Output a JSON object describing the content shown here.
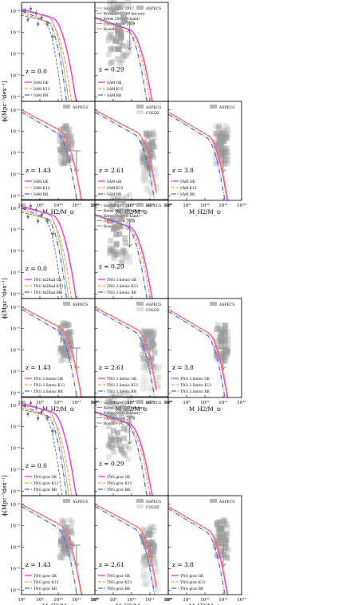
{
  "colors": {
    "GK": "#ff33e0",
    "K13": "#ffa23a",
    "BR": "#3c6fd6",
    "obs": "#777777",
    "aspecs": "#9a9a9a",
    "coldz": "#d2d2d2"
  },
  "labels": {
    "x_axis": "M_H2/M_⊙",
    "y_axis": "ϕ[Mpc⁻³dex⁻¹]",
    "aspecs": "ASPECS",
    "coldz": "COLDZ"
  },
  "observations": [
    "Saintonge+ 2017",
    "Keres 2003 (60 micron)",
    "Keres 2003 (B-band)",
    "Obreschkow 2009",
    "Boselli+14"
  ],
  "chart_data": [
    {
      "type": "line",
      "group": "SAM",
      "series_names": [
        "SAM GK",
        "SAM K13",
        "SAM BR"
      ],
      "panels": [
        {
          "z": "z = 0.0",
          "obs": true,
          "legend": [
            "SAM GK",
            "SAM K13",
            "SAM BR"
          ]
        },
        {
          "z": "z = 0.29",
          "aspecs": true,
          "legend": [
            "SAM GK",
            "SAM K13",
            "SAM BR"
          ]
        },
        {
          "z": "z = 1.43",
          "aspecs": true,
          "legend": [
            "SAM GK",
            "SAM K13",
            "SAM BR"
          ]
        },
        {
          "z": "z = 2.61",
          "aspecs": true,
          "coldz": true,
          "legend": [
            "SAM GK",
            "SAM K13",
            "SAM BR"
          ]
        },
        {
          "z": "z = 3.8",
          "aspecs": true,
          "legend": [
            "SAM GK",
            "SAM K13",
            "SAM BR"
          ]
        }
      ]
    },
    {
      "type": "line",
      "group": "TNG In2Rad / 3.Sersic",
      "series_names": [
        "TNG In2Rad GK",
        "TNG In2Rad K13",
        "TNG In2Rad BR"
      ],
      "panels": [
        {
          "z": "z = 0.0",
          "obs": true,
          "legend": [
            "TNG In2Rad GK",
            "TNG In2Rad K13",
            "TNG In2Rad BR"
          ]
        },
        {
          "z": "z = 0.29",
          "aspecs": true,
          "legend": [
            "TNG 3.Sersic GK",
            "TNG 3.Sersic K13",
            "TNG 3.Sersic BR"
          ]
        },
        {
          "z": "z = 1.43",
          "aspecs": true,
          "legend": [
            "TNG 3.Sersic GK",
            "TNG 3.Sersic K13",
            "TNG 3.Sersic BR"
          ]
        },
        {
          "z": "z = 2.61",
          "aspecs": true,
          "coldz": true,
          "legend": [
            "TNG 3.Sersic GK",
            "TNG 3.Sersic K13",
            "TNG 3.Sersic BR"
          ]
        },
        {
          "z": "z = 3.8",
          "aspecs": true,
          "legend": [
            "TNG 3.Sersic GK",
            "TNG 3.Sersic K13",
            "TNG 3.Sersic BR"
          ]
        }
      ]
    },
    {
      "type": "line",
      "group": "TNG grav",
      "series_names": [
        "TNG grav GK",
        "TNG grav K13",
        "TNG grav BR"
      ],
      "panels": [
        {
          "z": "z = 0.0",
          "obs": true,
          "legend": [
            "TNG grav GK",
            "TNG grav K13",
            "TNG grav BR"
          ]
        },
        {
          "z": "z = 0.29",
          "aspecs": true,
          "legend": [
            "TNG grav GK",
            "TNG grav K13",
            "TNG grav BR"
          ]
        },
        {
          "z": "z = 1.43",
          "aspecs": true,
          "legend": [
            "TNG grav GK",
            "TNG grav K13",
            "TNG grav BR"
          ]
        },
        {
          "z": "z = 2.61",
          "aspecs": true,
          "coldz": true,
          "legend": [
            "TNG grav GK",
            "TNG grav K13",
            "TNG grav BR"
          ]
        },
        {
          "z": "z = 3.8",
          "aspecs": true,
          "legend": [
            "TNG grav GK",
            "TNG grav K13",
            "TNG grav BR"
          ]
        }
      ]
    }
  ],
  "axes": {
    "xlim": [
      8,
      12
    ],
    "ylim": [
      -6.2,
      -1.6
    ],
    "x_ticks": [
      "10⁸",
      "10⁹",
      "10¹⁰",
      "10¹¹",
      "10¹²"
    ],
    "y_ticks": [
      {
        "v": -2,
        "label": "10⁻²"
      },
      {
        "v": -3,
        "label": "10⁻³"
      },
      {
        "v": -4,
        "label": "10⁻⁴"
      },
      {
        "v": -5,
        "label": "10⁻⁵"
      },
      {
        "v": -6,
        "label": "10⁻⁶"
      }
    ]
  }
}
